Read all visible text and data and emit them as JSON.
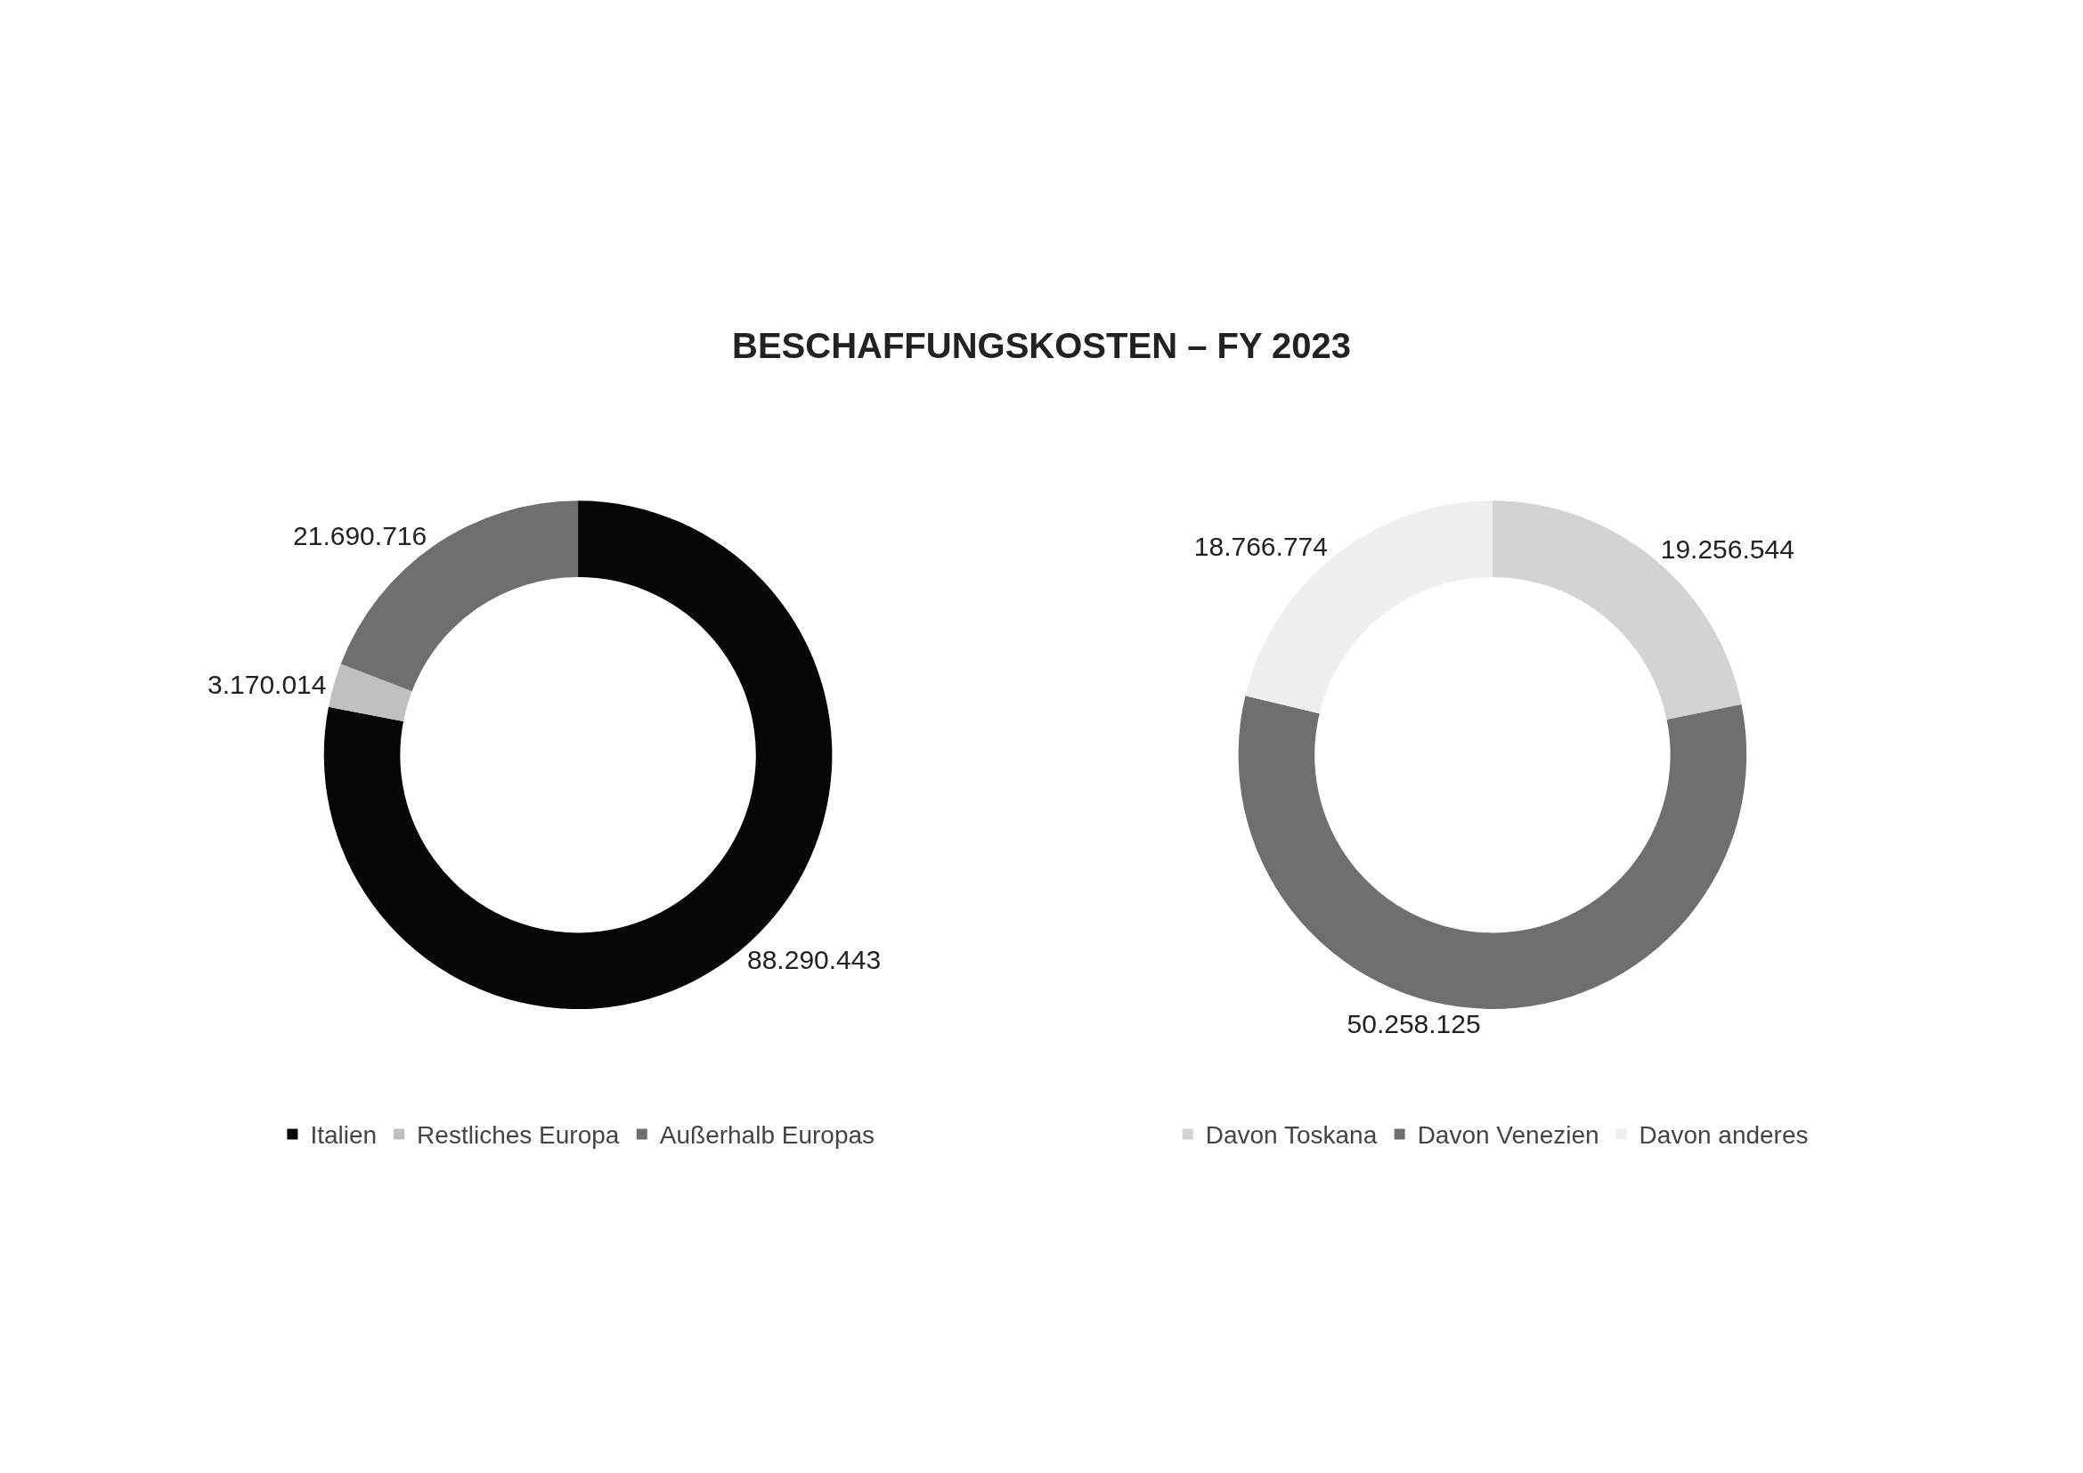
{
  "chart_data": [
    {
      "type": "donut",
      "title": "BESCHAFFUNGSKOSTEN – FY 2023",
      "categories": [
        "Italien",
        "Restliches Europa",
        "Außerhalb Europas"
      ],
      "values": [
        88290443,
        3170014,
        21690716
      ],
      "value_labels": [
        "88.290.443",
        "3.170.014",
        "21.690.716"
      ],
      "colors": [
        "#050606",
        "#c0c0c0",
        "#6f6f6f"
      ],
      "legend": "bottom"
    },
    {
      "type": "donut",
      "categories": [
        "Davon Toskana",
        "Davon Venezien",
        "Davon anderes"
      ],
      "values": [
        19256544,
        50258125,
        18766774
      ],
      "value_labels": [
        "19.256.544",
        "50.258.125",
        "18.766.774"
      ],
      "colors": [
        "#d3d3d3",
        "#6f6f6f",
        "#efefef"
      ],
      "legend": "bottom"
    }
  ]
}
